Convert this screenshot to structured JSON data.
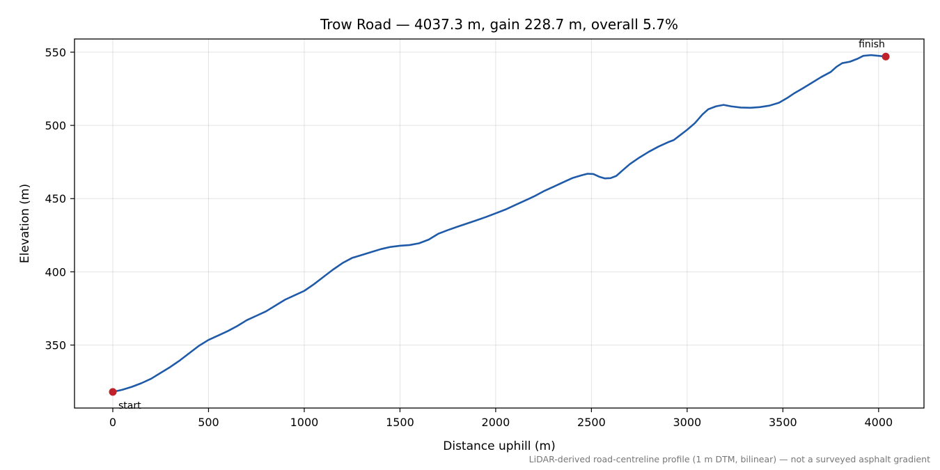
{
  "chart_data": {
    "type": "line",
    "title": "Trow Road — 4037.3 m, gain 228.7 m, overall 5.7%",
    "xlabel": "Distance uphill (m)",
    "ylabel": "Elevation (m)",
    "xlim": [
      -200,
      4237
    ],
    "ylim": [
      307,
      559
    ],
    "xticks": [
      0,
      500,
      1000,
      1500,
      2000,
      2500,
      3000,
      3500,
      4000
    ],
    "yticks": [
      350,
      400,
      450,
      500,
      550
    ],
    "grid": true,
    "series": [
      {
        "color": "#1f5aa8",
        "points": [
          [
            0,
            318
          ],
          [
            50,
            319.5
          ],
          [
            100,
            321.5
          ],
          [
            150,
            324
          ],
          [
            200,
            327
          ],
          [
            250,
            331
          ],
          [
            300,
            335
          ],
          [
            350,
            339.5
          ],
          [
            400,
            344.5
          ],
          [
            450,
            349.5
          ],
          [
            500,
            353.5
          ],
          [
            550,
            356.5
          ],
          [
            600,
            359.5
          ],
          [
            650,
            363
          ],
          [
            700,
            367
          ],
          [
            750,
            370
          ],
          [
            800,
            373
          ],
          [
            850,
            377
          ],
          [
            900,
            381
          ],
          [
            950,
            384
          ],
          [
            1000,
            387
          ],
          [
            1050,
            391.5
          ],
          [
            1100,
            396.5
          ],
          [
            1150,
            401.5
          ],
          [
            1200,
            406
          ],
          [
            1250,
            409.5
          ],
          [
            1300,
            411.5
          ],
          [
            1350,
            413.5
          ],
          [
            1400,
            415.5
          ],
          [
            1450,
            417
          ],
          [
            1500,
            417.8
          ],
          [
            1550,
            418.3
          ],
          [
            1600,
            419.5
          ],
          [
            1650,
            422
          ],
          [
            1700,
            426
          ],
          [
            1750,
            428.5
          ],
          [
            1800,
            430.8
          ],
          [
            1850,
            433
          ],
          [
            1900,
            435.2
          ],
          [
            1950,
            437.5
          ],
          [
            2000,
            440
          ],
          [
            2050,
            442.5
          ],
          [
            2100,
            445.5
          ],
          [
            2150,
            448.5
          ],
          [
            2200,
            451.5
          ],
          [
            2250,
            455
          ],
          [
            2300,
            458
          ],
          [
            2350,
            461
          ],
          [
            2400,
            464
          ],
          [
            2450,
            466
          ],
          [
            2480,
            467
          ],
          [
            2510,
            466.8
          ],
          [
            2540,
            465
          ],
          [
            2570,
            463.8
          ],
          [
            2600,
            464
          ],
          [
            2630,
            465.5
          ],
          [
            2660,
            469
          ],
          [
            2700,
            473.5
          ],
          [
            2750,
            478
          ],
          [
            2800,
            482
          ],
          [
            2850,
            485.5
          ],
          [
            2900,
            488.5
          ],
          [
            2930,
            490
          ],
          [
            2960,
            493
          ],
          [
            3000,
            497
          ],
          [
            3040,
            501.5
          ],
          [
            3080,
            507.5
          ],
          [
            3110,
            511
          ],
          [
            3150,
            513
          ],
          [
            3190,
            514
          ],
          [
            3230,
            513
          ],
          [
            3280,
            512.2
          ],
          [
            3330,
            512
          ],
          [
            3380,
            512.5
          ],
          [
            3430,
            513.5
          ],
          [
            3480,
            515.5
          ],
          [
            3520,
            518.5
          ],
          [
            3560,
            522
          ],
          [
            3600,
            525
          ],
          [
            3650,
            529
          ],
          [
            3700,
            533
          ],
          [
            3750,
            536.5
          ],
          [
            3780,
            540
          ],
          [
            3810,
            542.5
          ],
          [
            3850,
            543.5
          ],
          [
            3890,
            545.5
          ],
          [
            3920,
            547.5
          ],
          [
            3960,
            548
          ],
          [
            4000,
            547.5
          ],
          [
            4037.3,
            547
          ]
        ]
      }
    ],
    "markers": [
      {
        "x": 0,
        "y": 318,
        "label": "start",
        "color": "#c0222c"
      },
      {
        "x": 4037.3,
        "y": 547,
        "label": "finish",
        "color": "#c0222c"
      }
    ],
    "footnote": "LiDAR-derived road-centreline profile (1 m DTM, bilinear) — not a surveyed asphalt gradient"
  }
}
